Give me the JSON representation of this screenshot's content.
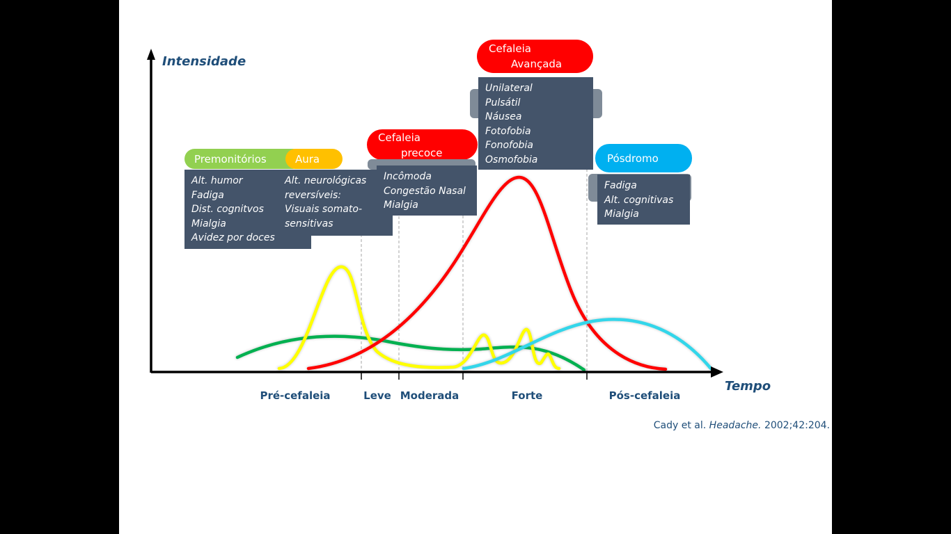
{
  "axes": {
    "y_label": "Intensidade",
    "x_label": "Tempo"
  },
  "phases": [
    {
      "label": "Pré-cefaleia"
    },
    {
      "label": "Leve"
    },
    {
      "label": "Moderada"
    },
    {
      "label": "Forte"
    },
    {
      "label": "Pós-cefaleia"
    }
  ],
  "stages": {
    "premonitorios": {
      "title": "Premonitórios",
      "color": "#92d050",
      "symptoms": [
        "Alt. humor",
        "Fadiga",
        "Dist. cognitvos",
        "Mialgia",
        "Avidez por doces"
      ]
    },
    "aura": {
      "title": "Aura",
      "color": "#ffc000",
      "symptoms": [
        "Alt. neurológicas",
        "reversíveis:",
        "Visuais somato-",
        "sensitivas"
      ]
    },
    "cefaleia_precoce": {
      "title_line1": "Cefaleia",
      "title_line2": "precoce",
      "color": "#ff0000",
      "symptoms": [
        "Incômoda",
        "Congestão Nasal",
        "Mialgia"
      ]
    },
    "cefaleia_avancada": {
      "title_line1": "Cefaleia",
      "title_line2": "Avançada",
      "color": "#ff0000",
      "symptoms": [
        "Unilateral",
        "Pulsátil",
        "Náusea",
        "Fotofobia",
        "Fonofobia",
        "Osmofobia"
      ]
    },
    "posdromo": {
      "title": "Pósdromo",
      "color": "#00b0f0",
      "symptoms": [
        "Fadiga",
        "Alt. cognitivas",
        "Mialgia"
      ]
    }
  },
  "curves": {
    "green_color": "#00b050",
    "yellow_color": "#ffff00",
    "red_color": "#ff0000",
    "cyan_color": "#33d6ea"
  },
  "citation": {
    "authors": "Cady et al. ",
    "journal": "Headache.",
    "ref": " 2002;42:204."
  }
}
